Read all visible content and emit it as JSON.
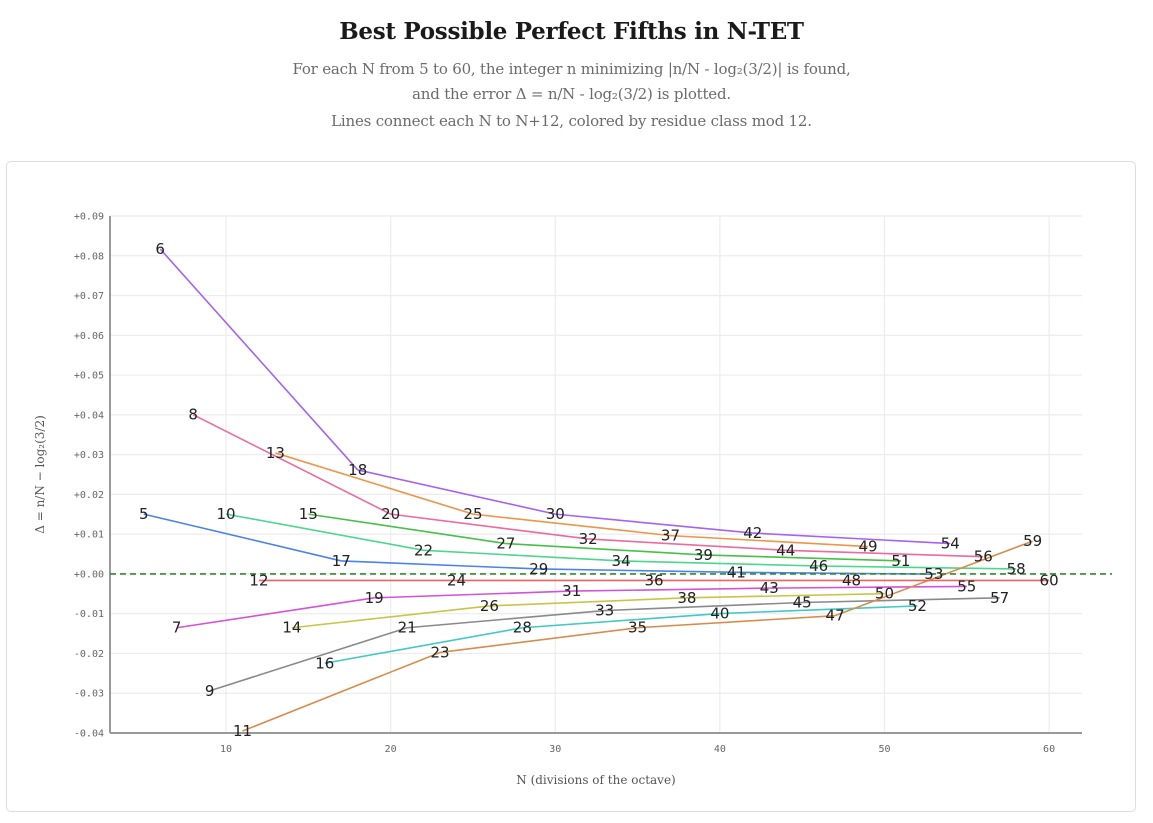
{
  "header": {
    "title": "Best Possible Perfect Fifths in N-TET",
    "subtitle_lines": [
      "For each N from 5 to 60, the integer n minimizing |n/N - log₂(3/2)| is found,",
      "and the error Δ = n/N - log₂(3/2) is plotted.",
      "Lines connect each N to N+12, colored by residue class mod 12."
    ]
  },
  "chart_data": {
    "type": "line",
    "title": "Best Possible Perfect Fifths in N-TET",
    "xlabel": "N (divisions of the octave)",
    "ylabel": "Δ = n/N − log₂(3/2)",
    "xlim": [
      2.95,
      62
    ],
    "ylim": [
      -0.04,
      0.09
    ],
    "x_ticks": [
      10,
      20,
      30,
      40,
      50,
      60
    ],
    "x_tick_labels": [
      "10",
      "20",
      "30",
      "40",
      "50",
      "60"
    ],
    "y_ticks": [
      -0.04,
      -0.03,
      -0.02,
      -0.01,
      0.0,
      0.01,
      0.02,
      0.03,
      0.04,
      0.05,
      0.06,
      0.07,
      0.08,
      0.09
    ],
    "y_tick_labels": [
      "-0.04",
      "-0.03",
      "-0.02",
      "-0.01",
      "+0.00",
      "+0.01",
      "+0.02",
      "+0.03",
      "+0.04",
      "+0.05",
      "+0.06",
      "+0.07",
      "+0.08",
      "+0.09"
    ],
    "grid": true,
    "reference_line": {
      "y": 0.0,
      "style": "dashed",
      "color": "#2e8b2e"
    },
    "points": [
      {
        "N": 5,
        "delta": 0.015037
      },
      {
        "N": 6,
        "delta": 0.081704
      },
      {
        "N": 7,
        "delta": -0.013534
      },
      {
        "N": 8,
        "delta": 0.040037
      },
      {
        "N": 9,
        "delta": -0.029407
      },
      {
        "N": 10,
        "delta": 0.015037
      },
      {
        "N": 11,
        "delta": -0.039508
      },
      {
        "N": 12,
        "delta": -0.00163
      },
      {
        "N": 13,
        "delta": 0.030422
      },
      {
        "N": 14,
        "delta": -0.013534
      },
      {
        "N": 15,
        "delta": 0.015037
      },
      {
        "N": 16,
        "delta": -0.022463
      },
      {
        "N": 17,
        "delta": 0.003272
      },
      {
        "N": 18,
        "delta": 0.026148
      },
      {
        "N": 19,
        "delta": -0.006016
      },
      {
        "N": 20,
        "delta": 0.015037
      },
      {
        "N": 21,
        "delta": -0.013534
      },
      {
        "N": 22,
        "delta": 0.005946
      },
      {
        "N": 23,
        "delta": -0.019746
      },
      {
        "N": 24,
        "delta": -0.00163
      },
      {
        "N": 25,
        "delta": 0.015037
      },
      {
        "N": 26,
        "delta": -0.00804
      },
      {
        "N": 27,
        "delta": 0.00763
      },
      {
        "N": 28,
        "delta": -0.013534
      },
      {
        "N": 29,
        "delta": 0.001244
      },
      {
        "N": 30,
        "delta": 0.015037
      },
      {
        "N": 31,
        "delta": -0.004318
      },
      {
        "N": 32,
        "delta": 0.008787
      },
      {
        "N": 33,
        "delta": -0.009205
      },
      {
        "N": 34,
        "delta": 0.003272
      },
      {
        "N": 35,
        "delta": -0.013534
      },
      {
        "N": 36,
        "delta": -0.00163
      },
      {
        "N": 37,
        "delta": 0.009632
      },
      {
        "N": 38,
        "delta": -0.006016
      },
      {
        "N": 39,
        "delta": 0.004781
      },
      {
        "N": 40,
        "delta": -0.009963
      },
      {
        "N": 41,
        "delta": 0.000403
      },
      {
        "N": 42,
        "delta": 0.010275
      },
      {
        "N": 43,
        "delta": -0.003568
      },
      {
        "N": 44,
        "delta": 0.005946
      },
      {
        "N": 45,
        "delta": -0.007185
      },
      {
        "N": 46,
        "delta": 0.001994
      },
      {
        "N": 47,
        "delta": -0.010495
      },
      {
        "N": 48,
        "delta": -0.00163
      },
      {
        "N": 49,
        "delta": 0.006874
      },
      {
        "N": 50,
        "delta": -0.004963
      },
      {
        "N": 51,
        "delta": 0.003272
      },
      {
        "N": 52,
        "delta": -0.00804
      },
      {
        "N": 53,
        "delta": -5.7e-05
      },
      {
        "N": 54,
        "delta": 0.00763
      },
      {
        "N": 55,
        "delta": -0.003145
      },
      {
        "N": 56,
        "delta": 0.004323
      },
      {
        "N": 57,
        "delta": -0.006016
      },
      {
        "N": 58,
        "delta": 0.001244
      },
      {
        "N": 59,
        "delta": 0.008257
      },
      {
        "N": 60,
        "delta": -0.00163
      }
    ],
    "residue_colors": {
      "0": "#f06262",
      "1": "#ee9548",
      "2": "#c8c646",
      "3": "#48c048",
      "4": "#44c8c4",
      "5": "#4a84e8",
      "6": "#a463f2",
      "7": "#d452d8",
      "8": "#ec6a9c",
      "9": "#8a8a8a",
      "10": "#4cd68e",
      "11": "#d88c4c"
    }
  }
}
